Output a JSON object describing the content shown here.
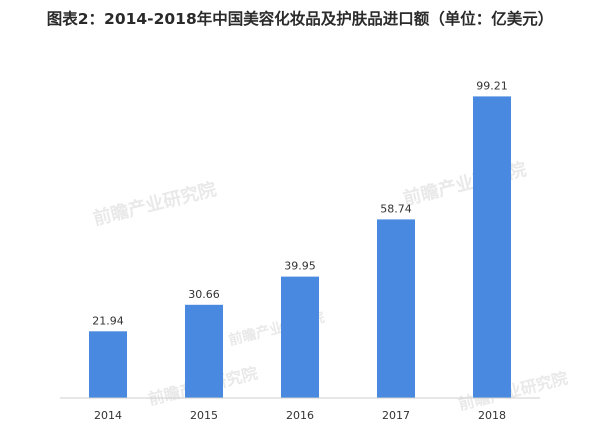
{
  "chart_data": {
    "type": "bar",
    "title": "图表2：2014-2018年中国美容化妆品及护肤品进口额（单位：亿美元）",
    "categories": [
      "2014",
      "2015",
      "2016",
      "2017",
      "2018"
    ],
    "values": [
      21.94,
      30.66,
      39.95,
      58.74,
      99.21
    ],
    "value_labels": [
      "21.94",
      "30.66",
      "39.95",
      "58.74",
      "99.21"
    ],
    "xlabel": "",
    "ylabel": "",
    "ylim": [
      0,
      100
    ],
    "grid": false,
    "legend": "none",
    "bar_color": "#4a89e0"
  },
  "watermark": "前瞻产业研究院"
}
